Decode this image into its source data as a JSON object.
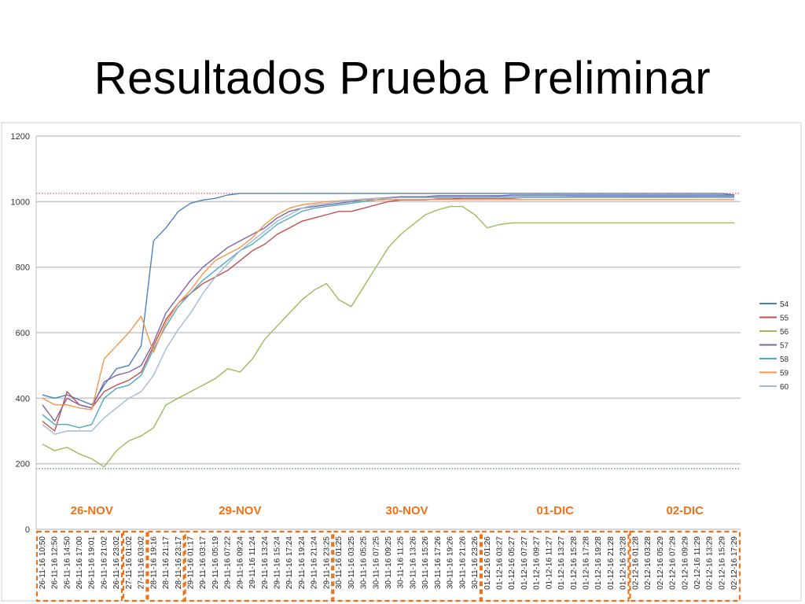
{
  "slide": {
    "title": "Resultados Prueba Preliminar"
  },
  "colors": {
    "annotation": "#e8731a",
    "day_label": "#e8731a",
    "reference_top": "#e0404a",
    "reference_bottom": "#3a4fa0"
  },
  "chart_data": {
    "type": "line",
    "title": "",
    "xlabel": "",
    "ylabel": "",
    "ylim": [
      0,
      1200
    ],
    "yticks": [
      0,
      200,
      400,
      600,
      800,
      1000,
      1200
    ],
    "grid": true,
    "legend_position": "right",
    "reference_lines": [
      1025,
      185
    ],
    "x_tick_labels": [
      "26-11-16 10:50",
      "26-11-16 12:50",
      "26-11-16 14:50",
      "26-11-16 17:00",
      "26-11-16 19:01",
      "26-11-16 21:02",
      "26-11-16 23:02",
      "27-11-16 01:02",
      "27-11-16 03:02",
      "28-11-16 19:16",
      "28-11-16 21:17",
      "28-11-16 23:17",
      "29-11-16 01:17",
      "29-11-16 03:17",
      "29-11-16 05:19",
      "29-11-16 07:22",
      "29-11-16 09:24",
      "29-11-16 11:24",
      "29-11-16 13:24",
      "29-11-16 15:24",
      "29-11-16 17:24",
      "29-11-16 19:24",
      "29-11-16 21:24",
      "29-11-16 23:25",
      "30-11-16 01:25",
      "30-11-16 03:25",
      "30-11-16 05:25",
      "30-11-16 07:25",
      "30-11-16 09:25",
      "30-11-16 11:25",
      "30-11-16 13:26",
      "30-11-16 15:26",
      "30-11-16 17:26",
      "30-11-16 19:26",
      "30-11-16 21:26",
      "30-11-16 23:26",
      "01-12-16 01:26",
      "01-12-16 03:27",
      "01-12-16 05:27",
      "01-12-16 07:27",
      "01-12-16 09:27",
      "01-12-16 11:27",
      "01-12-16 13:27",
      "01-12-16 15:28",
      "01-12-16 17:28",
      "01-12-16 19:28",
      "01-12-16 21:28",
      "01-12-16 23:28",
      "02-12-16 01:28",
      "02-12-16 03:28",
      "02-12-16 05:29",
      "02-12-16 07:29",
      "02-12-16 09:29",
      "02-12-16 11:29",
      "02-12-16 13:29",
      "02-12-16 15:29",
      "02-12-16 17:29"
    ],
    "day_annotations": [
      {
        "label": "26-NOV",
        "start_index": 0,
        "end_index": 8
      },
      {
        "label": "29-NOV",
        "start_index": 9,
        "end_index": 23
      },
      {
        "label": "30-NOV",
        "start_index": 24,
        "end_index": 35
      },
      {
        "label": "01-DIC",
        "start_index": 36,
        "end_index": 47
      },
      {
        "label": "02-DIC",
        "start_index": 48,
        "end_index": 56
      }
    ],
    "bracket_groups": [
      [
        0,
        6
      ],
      [
        7,
        8
      ],
      [
        9,
        11
      ],
      [
        12,
        23
      ],
      [
        24,
        35
      ],
      [
        36,
        47
      ],
      [
        48,
        56
      ]
    ],
    "series": [
      {
        "name": "54",
        "color": "#4f81bd",
        "values": [
          410,
          400,
          410,
          395,
          380,
          440,
          490,
          500,
          560,
          880,
          920,
          970,
          995,
          1005,
          1010,
          1020,
          1025,
          1025,
          1025,
          1025,
          1025,
          1025,
          1025,
          1025,
          1025,
          1025,
          1025,
          1025,
          1025,
          1025,
          1025,
          1025,
          1025,
          1025,
          1025,
          1025,
          1025,
          1025,
          1025,
          1025,
          1025,
          1025,
          1025,
          1025,
          1025,
          1025,
          1025,
          1025,
          1025,
          1025,
          1025,
          1025,
          1025,
          1025,
          1025,
          1025,
          1020
        ]
      },
      {
        "name": "55",
        "color": "#c0504d",
        "values": [
          330,
          300,
          420,
          380,
          370,
          420,
          440,
          455,
          480,
          560,
          640,
          690,
          720,
          750,
          770,
          790,
          820,
          850,
          870,
          900,
          920,
          940,
          950,
          960,
          970,
          970,
          980,
          990,
          1000,
          1005,
          1005,
          1005,
          1008,
          1008,
          1010,
          1010,
          1010,
          1010,
          1010,
          1012,
          1012,
          1012,
          1012,
          1013,
          1013,
          1013,
          1013,
          1013,
          1014,
          1014,
          1014,
          1014,
          1014,
          1015,
          1015,
          1015,
          1015
        ]
      },
      {
        "name": "56",
        "color": "#9bbb59",
        "values": [
          260,
          240,
          250,
          230,
          215,
          190,
          240,
          270,
          285,
          310,
          380,
          400,
          420,
          440,
          460,
          490,
          480,
          520,
          580,
          620,
          660,
          700,
          730,
          750,
          700,
          680,
          740,
          800,
          860,
          900,
          930,
          960,
          975,
          985,
          985,
          960,
          920,
          930,
          935,
          935,
          935,
          935,
          935,
          935,
          935,
          935,
          935,
          935,
          935,
          935,
          935,
          935,
          935,
          935,
          935,
          935,
          935
        ]
      },
      {
        "name": "57",
        "color": "#8064a2",
        "values": [
          380,
          330,
          400,
          380,
          370,
          450,
          470,
          480,
          500,
          570,
          660,
          710,
          760,
          800,
          830,
          860,
          880,
          900,
          920,
          950,
          970,
          980,
          985,
          990,
          995,
          1000,
          1005,
          1010,
          1012,
          1015,
          1015,
          1015,
          1018,
          1018,
          1018,
          1018,
          1018,
          1018,
          1020,
          1020,
          1020,
          1020,
          1020,
          1020,
          1020,
          1020,
          1020,
          1020,
          1020,
          1020,
          1020,
          1020,
          1020,
          1020,
          1020,
          1020,
          1020
        ]
      },
      {
        "name": "58",
        "color": "#4bacc6",
        "values": [
          350,
          320,
          320,
          310,
          320,
          400,
          430,
          440,
          470,
          550,
          620,
          680,
          720,
          760,
          790,
          820,
          850,
          870,
          900,
          930,
          950,
          970,
          980,
          985,
          990,
          995,
          1000,
          1005,
          1010,
          1012,
          1012,
          1012,
          1014,
          1014,
          1014,
          1014,
          1014,
          1015,
          1015,
          1015,
          1015,
          1015,
          1015,
          1016,
          1016,
          1016,
          1016,
          1016,
          1016,
          1016,
          1016,
          1016,
          1016,
          1016,
          1016,
          1016,
          1016
        ]
      },
      {
        "name": "59",
        "color": "#f79646",
        "values": [
          400,
          380,
          380,
          370,
          365,
          520,
          560,
          600,
          650,
          540,
          630,
          690,
          730,
          780,
          820,
          840,
          860,
          890,
          930,
          960,
          980,
          990,
          995,
          1000,
          1002,
          1005,
          1005,
          1005,
          1006,
          1006,
          1006,
          1006,
          1006,
          1006,
          1006,
          1006,
          1006,
          1006,
          1006,
          1006,
          1006,
          1006,
          1006,
          1006,
          1006,
          1006,
          1006,
          1006,
          1006,
          1006,
          1006,
          1006,
          1006,
          1006,
          1006,
          1006,
          1006
        ]
      },
      {
        "name": "60",
        "color": "#a5b8d8",
        "values": [
          320,
          290,
          300,
          300,
          300,
          340,
          370,
          400,
          420,
          470,
          550,
          610,
          660,
          720,
          770,
          810,
          850,
          880,
          910,
          940,
          960,
          980,
          990,
          995,
          1000,
          1005,
          1008,
          1010,
          1010,
          1012,
          1012,
          1012,
          1012,
          1012,
          1012,
          1012,
          1012,
          1012,
          1012,
          1012,
          1012,
          1012,
          1012,
          1012,
          1012,
          1012,
          1012,
          1012,
          1012,
          1012,
          1012,
          1012,
          1012,
          1012,
          1012,
          1012,
          1012
        ]
      }
    ]
  }
}
